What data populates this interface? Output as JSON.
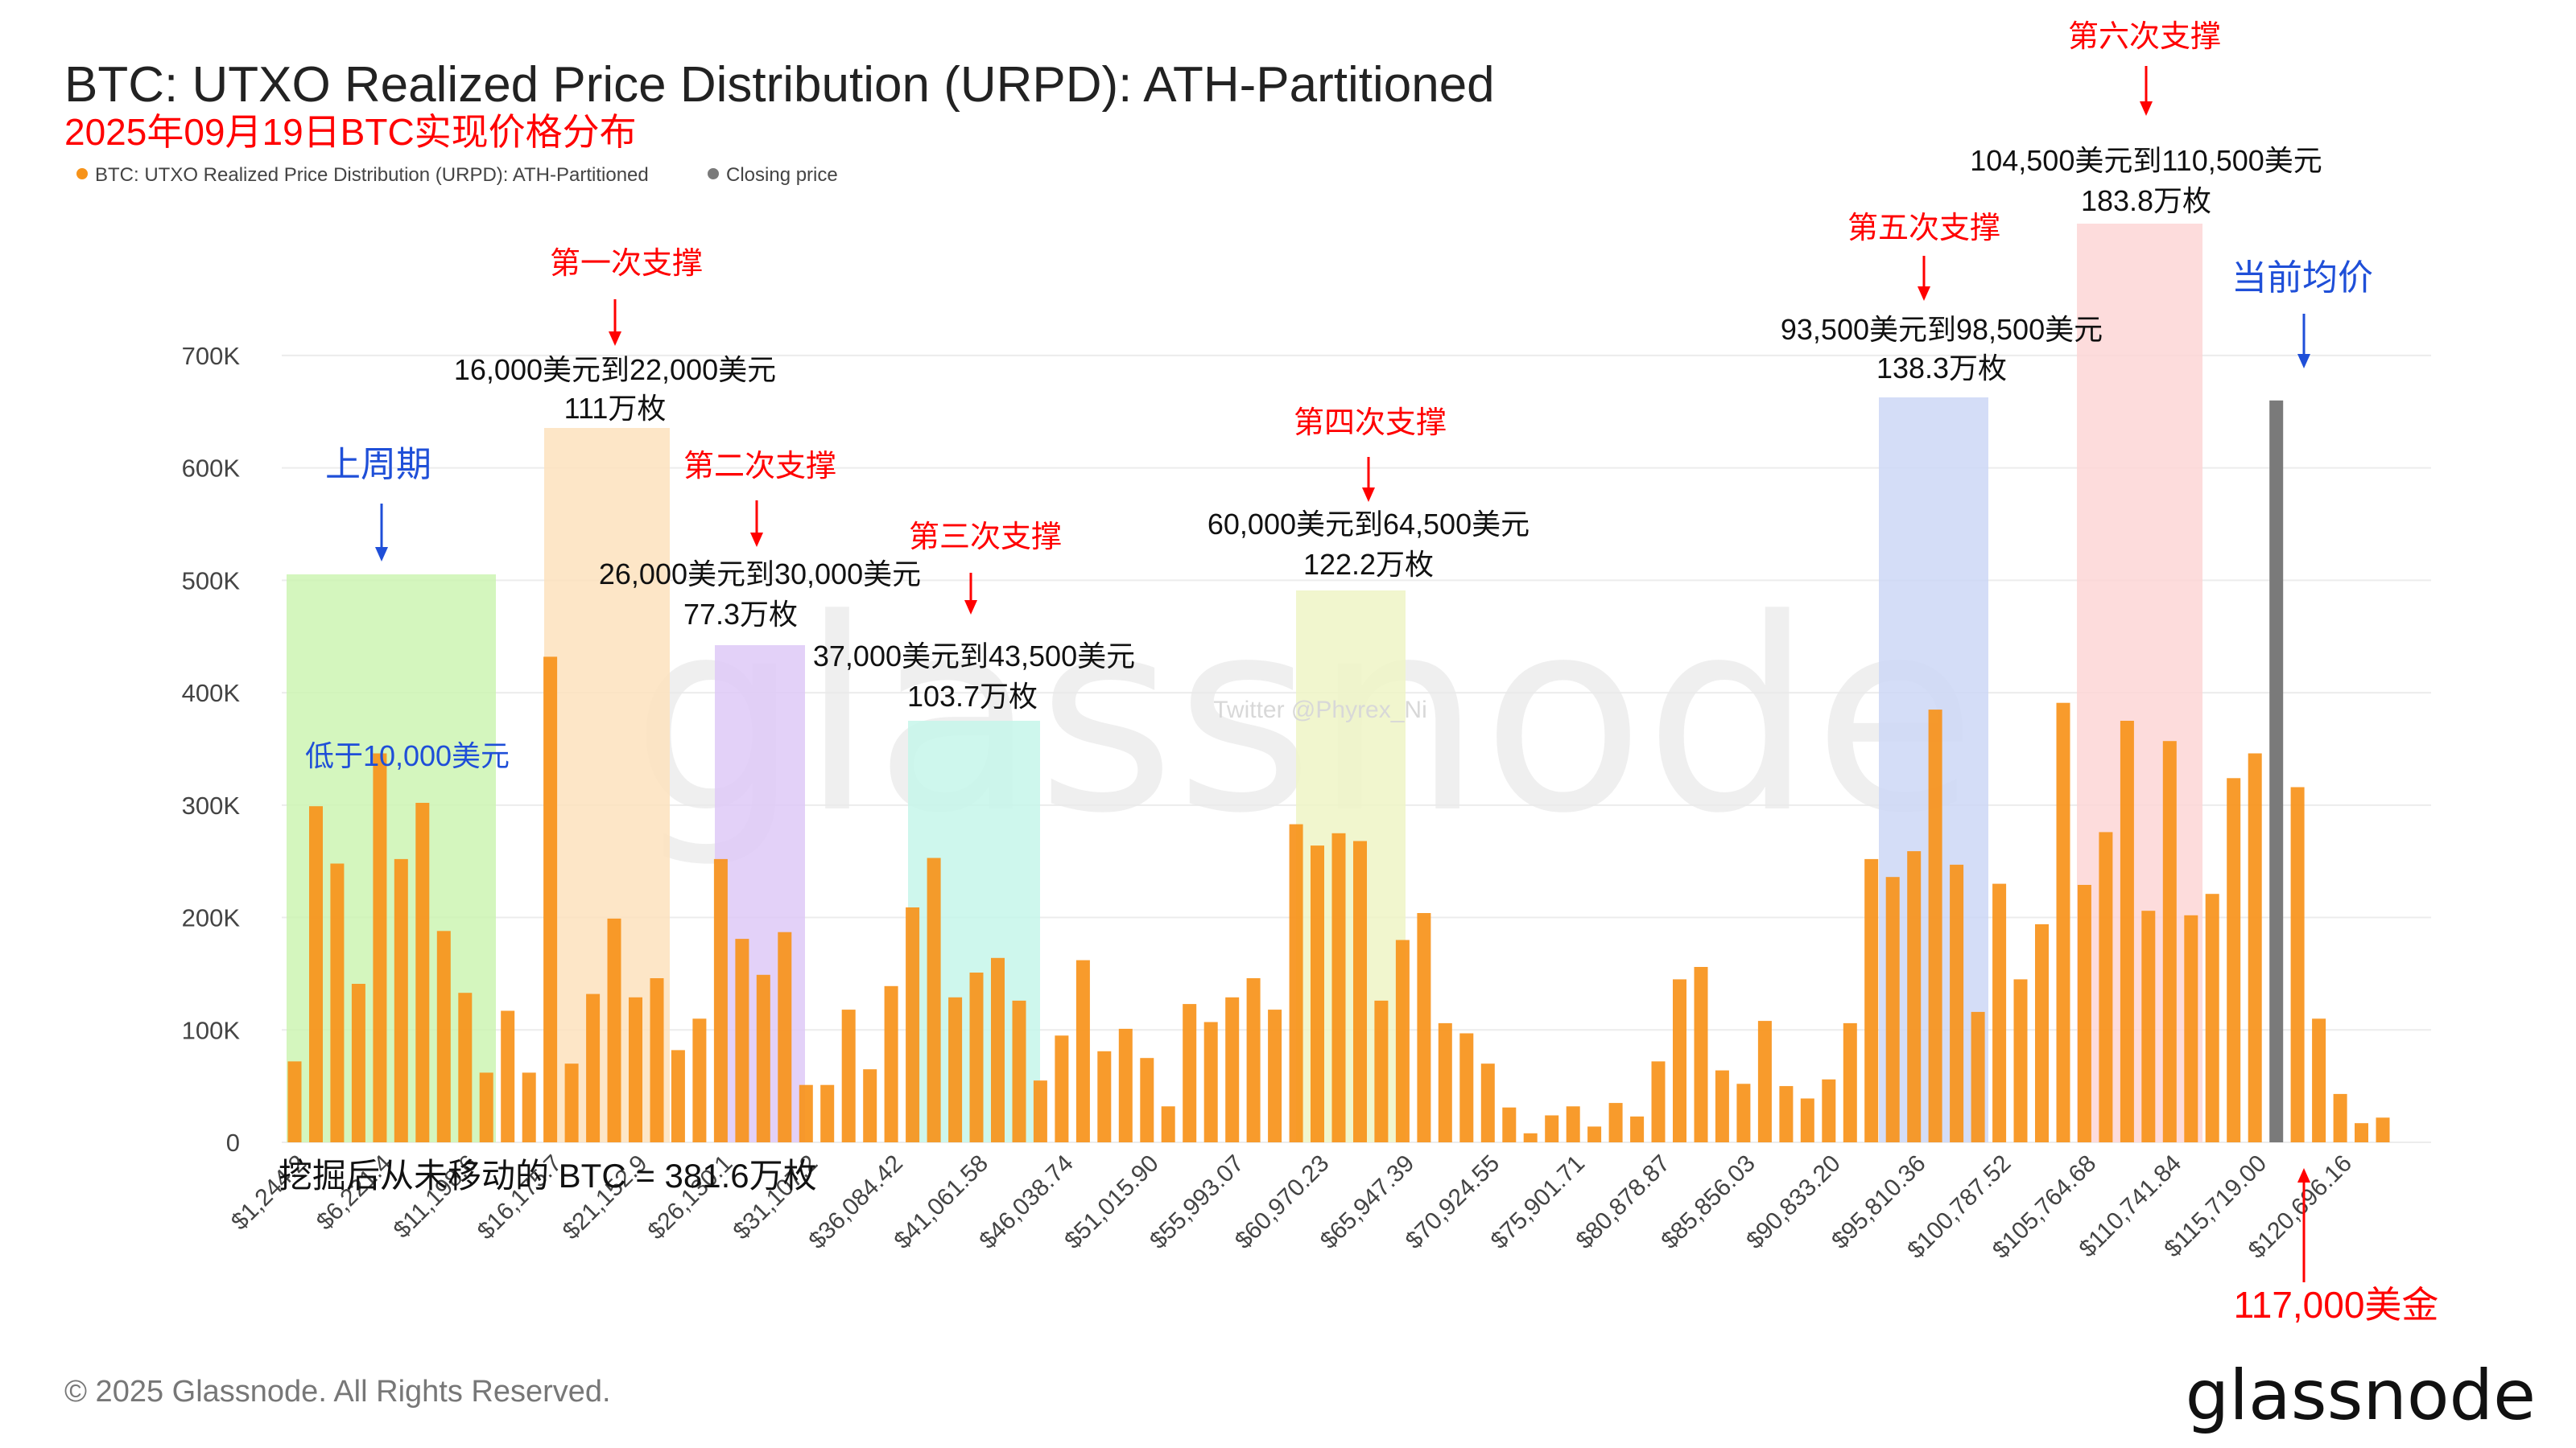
{
  "header": {
    "title": "BTC: UTXO Realized Price Distribution (URPD): ATH-Partitioned",
    "subtitle": "2025年09月19日BTC实现价格分布"
  },
  "legend": {
    "items": [
      {
        "label": "BTC: UTXO Realized Price Distribution (URPD): ATH-Partitioned",
        "color": "#f7931a"
      },
      {
        "label": "Closing price",
        "color": "#7a7a7a"
      }
    ]
  },
  "watermark": {
    "brand": "glassnode",
    "credit": "Twitter @Phyrex_Ni"
  },
  "footer": {
    "copyright": "© 2025 Glassnode. All Rights Reserved.",
    "logo": "glassnode"
  },
  "colors": {
    "bar": "#f7931a",
    "closing": "#7a7a7a",
    "annotation_red": "#ff0000",
    "annotation_blue": "#1f4fd8"
  },
  "annotations": {
    "bottom_note": "挖掘后从未移动的 BTC = 381.6万枚",
    "current_price": "117,000美金",
    "current_avg_label": "当前均价",
    "zones": [
      {
        "label": "上周期",
        "detail": "低于10,000美元",
        "color": "#ccf5b3"
      },
      {
        "label": "第一次支撑",
        "range": "16,000美元到22,000美元",
        "amount": "111万枚",
        "color": "#fde2bd"
      },
      {
        "label": "第二次支撑",
        "range": "26,000美元到30,000美元",
        "amount": "77.3万枚",
        "color": "#dec9f7"
      },
      {
        "label": "第三次支撑",
        "range": "37,000美元到43,500美元",
        "amount": "103.7万枚",
        "color": "#c6f6ea"
      },
      {
        "label": "第四次支撑",
        "range": "60,000美元到64,500美元",
        "amount": "122.2万枚",
        "color": "#eef5c6"
      },
      {
        "label": "第五次支撑",
        "range": "93,500美元到98,500美元",
        "amount": "138.3万枚",
        "color": "#cdd7f6"
      },
      {
        "label": "第六次支撑",
        "range": "104,500美元到110,500美元",
        "amount": "183.8万枚",
        "color": "#fdd6d6"
      }
    ]
  },
  "chart_data": {
    "type": "bar",
    "title": "BTC: UTXO Realized Price Distribution (URPD): ATH-Partitioned",
    "ylim": [
      0,
      730000
    ],
    "yticks": [
      0,
      100000,
      200000,
      300000,
      400000,
      500000,
      600000,
      700000
    ],
    "ytick_labels": [
      "0",
      "100K",
      "200K",
      "300K",
      "400K",
      "500K",
      "600K",
      "700K"
    ],
    "grid": true,
    "legend_position": "top-left",
    "xtick_labels": [
      "$1,244.2",
      "$6,221.4",
      "$11,198.6",
      "$16,175.7",
      "$21,152.9",
      "$26,130.1",
      "$31,107.2",
      "$36,084.42",
      "$41,061.58",
      "$46,038.74",
      "$51,015.90",
      "$55,993.07",
      "$60,970.23",
      "$65,947.39",
      "$70,924.55",
      "$75,901.71",
      "$80,878.87",
      "$85,856.03",
      "$90,833.20",
      "$95,810.36",
      "$100,787.52",
      "$105,764.68",
      "$110,741.84",
      "$115,719.00",
      "$120,696.16"
    ],
    "series": [
      {
        "name": "BTC: UTXO Realized Price Distribution (URPD): ATH-Partitioned",
        "values": [
          72000,
          299000,
          248000,
          141000,
          346000,
          252000,
          302000,
          188000,
          133000,
          62000,
          117000,
          62000,
          432000,
          70000,
          132000,
          199000,
          129000,
          146000,
          82000,
          110000,
          252000,
          181000,
          149000,
          187000,
          51000,
          51000,
          118000,
          65000,
          139000,
          209000,
          253000,
          129000,
          151000,
          164000,
          126000,
          55000,
          95000,
          162000,
          81000,
          101000,
          75000,
          32000,
          123000,
          107000,
          129000,
          146000,
          118000,
          283000,
          264000,
          275000,
          268000,
          126000,
          180000,
          204000,
          106000,
          97000,
          70000,
          31000,
          8000,
          24000,
          32000,
          14000,
          35000,
          23000,
          72000,
          145000,
          156000,
          64000,
          52000,
          108000,
          50000,
          39000,
          56000,
          106000,
          252000,
          236000,
          259000,
          385000,
          247000,
          116000,
          230000,
          145000,
          194000,
          391000,
          229000,
          276000,
          375000,
          206000,
          357000,
          202000,
          221000,
          324000,
          346000,
          660000,
          316000,
          110000,
          43000,
          17000,
          22000
        ]
      }
    ],
    "closing_price_index": 93
  }
}
